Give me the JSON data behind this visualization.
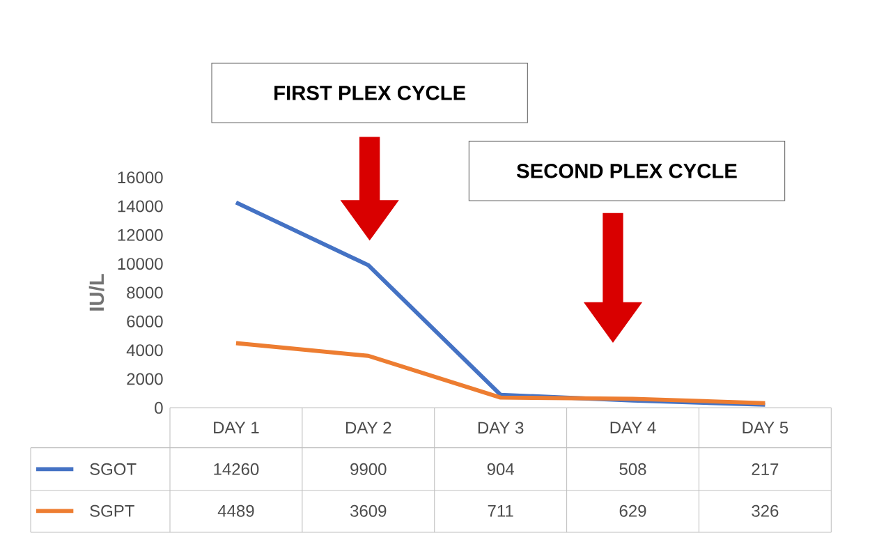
{
  "chart_data": {
    "type": "line",
    "ylabel": "IU/L",
    "categories": [
      "DAY 1",
      "DAY 2",
      "DAY 3",
      "DAY 4",
      "DAY 5"
    ],
    "series": [
      {
        "name": "SGOT",
        "color": "#4472c4",
        "values": [
          14260,
          9900,
          904,
          508,
          217
        ]
      },
      {
        "name": "SGPT",
        "color": "#ed7d31",
        "values": [
          4489,
          3609,
          711,
          629,
          326
        ]
      }
    ],
    "ylim": [
      0,
      16000
    ],
    "yticks": [
      0,
      2000,
      4000,
      6000,
      8000,
      10000,
      12000,
      14000,
      16000
    ],
    "data_labels": true,
    "legend": "bottom left",
    "marker": "none",
    "line_style": "solid",
    "annotations": [
      "FIRST PLEX CYCLE",
      "SECOND PLEX CYCLE"
    ]
  }
}
